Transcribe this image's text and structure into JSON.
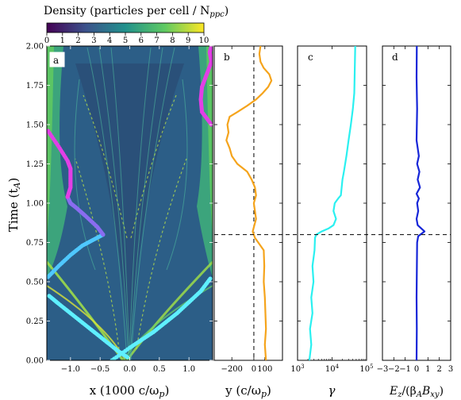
{
  "colorbar": {
    "label": "Density (particles per cell / N",
    "label_sub": "ppc",
    "label_close": ")",
    "ticks": [
      "0",
      "1",
      "2",
      "3",
      "4",
      "5",
      "6",
      "7",
      "8",
      "9",
      "10"
    ],
    "colors": [
      "#440154",
      "#3b528b",
      "#21918c",
      "#5ec962",
      "#fde725"
    ]
  },
  "panels": [
    {
      "letter": "a"
    },
    {
      "letter": "b"
    },
    {
      "letter": "c"
    },
    {
      "letter": "d"
    }
  ],
  "chart_data": [
    {
      "type": "heatmap",
      "panel": "a",
      "title": "",
      "xlabel": "x (1000 c/ω",
      "xlabel_sub": "p",
      "xlabel_close": ")",
      "ylabel": "Time (t",
      "ylabel_sub": "A",
      "ylabel_close": ")",
      "xlim": [
        -1.4,
        1.4
      ],
      "ylim": [
        0,
        2.0
      ],
      "xticks": [
        "−1.0",
        "−0.5",
        "0.0",
        "0.5",
        "1.0"
      ],
      "xtick_values": [
        -1.0,
        -0.5,
        0.0,
        0.5,
        1.0
      ],
      "yticks": [
        "0.00",
        "0.25",
        "0.50",
        "0.75",
        "1.00",
        "1.25",
        "1.50",
        "1.75",
        "2.00"
      ],
      "ytick_values": [
        0,
        0.25,
        0.5,
        0.75,
        1.0,
        1.25,
        1.5,
        1.75,
        2.0
      ],
      "series": [
        {
          "color": "#5ff0ff",
          "points": [
            [
              -0.04,
              0.02
            ],
            [
              -0.2,
              0.06
            ],
            [
              -0.4,
              0.12
            ],
            [
              -0.6,
              0.18
            ],
            [
              -0.8,
              0.24
            ],
            [
              -1.0,
              0.3
            ],
            [
              -1.2,
              0.36
            ],
            [
              -1.36,
              0.41
            ]
          ]
        },
        {
          "color": "#5ff0ff",
          "points": [
            [
              1.36,
              0.52
            ],
            [
              1.2,
              0.44
            ],
            [
              1.0,
              0.37
            ],
            [
              0.8,
              0.3
            ],
            [
              0.6,
              0.24
            ],
            [
              0.4,
              0.18
            ],
            [
              0.2,
              0.13
            ],
            [
              0.0,
              0.08
            ],
            [
              -0.3,
              0.0
            ]
          ]
        },
        {
          "color": "#4fc8ff",
          "points": [
            [
              -1.38,
              0.53
            ],
            [
              -1.2,
              0.6
            ],
            [
              -1.0,
              0.67
            ],
            [
              -0.8,
              0.73
            ],
            [
              -0.6,
              0.77
            ],
            [
              -0.45,
              0.8
            ]
          ]
        },
        {
          "color": "#8a6cf0",
          "points": [
            [
              -0.45,
              0.8
            ],
            [
              -0.55,
              0.85
            ],
            [
              -0.75,
              0.92
            ],
            [
              -0.9,
              0.97
            ],
            [
              -1.0,
              1.0
            ],
            [
              -1.05,
              1.04
            ]
          ]
        },
        {
          "color": "#e23fe6",
          "points": [
            [
              -1.05,
              1.04
            ],
            [
              -1.0,
              1.1
            ],
            [
              -1.0,
              1.16
            ],
            [
              -1.0,
              1.22
            ],
            [
              -1.05,
              1.27
            ],
            [
              -1.2,
              1.36
            ],
            [
              -1.38,
              1.46
            ]
          ]
        },
        {
          "color": "#e23fe6",
          "points": [
            [
              1.38,
              1.5
            ],
            [
              1.22,
              1.58
            ],
            [
              1.2,
              1.66
            ],
            [
              1.22,
              1.74
            ],
            [
              1.3,
              1.82
            ],
            [
              1.38,
              1.9
            ],
            [
              1.35,
              1.96
            ],
            [
              1.38,
              2.0
            ]
          ]
        }
      ]
    },
    {
      "type": "line",
      "panel": "b",
      "xlabel": "y (c/ω",
      "xlabel_sub": "p",
      "xlabel_close": ")",
      "xlim": [
        -360,
        260
      ],
      "ylim": [
        0,
        2.0
      ],
      "xticks": [
        "−200",
        "0",
        "100"
      ],
      "xtick_values": [
        -200,
        0,
        100
      ],
      "color": "#f5a41c",
      "series": [
        {
          "name": "",
          "color": "#f5a41c",
          "points": [
            [
              110,
              0.0
            ],
            [
              100,
              0.1
            ],
            [
              110,
              0.2
            ],
            [
              105,
              0.3
            ],
            [
              100,
              0.4
            ],
            [
              90,
              0.5
            ],
            [
              95,
              0.6
            ],
            [
              90,
              0.7
            ],
            [
              10,
              0.78
            ],
            [
              -10,
              0.82
            ],
            [
              20,
              0.9
            ],
            [
              0,
              1.0
            ],
            [
              20,
              1.05
            ],
            [
              10,
              1.1
            ],
            [
              -20,
              1.15
            ],
            [
              -60,
              1.2
            ],
            [
              -150,
              1.25
            ],
            [
              -200,
              1.3
            ],
            [
              -220,
              1.35
            ],
            [
              -250,
              1.4
            ],
            [
              -230,
              1.45
            ],
            [
              -240,
              1.5
            ],
            [
              -220,
              1.55
            ],
            [
              -150,
              1.58
            ],
            [
              -60,
              1.62
            ],
            [
              20,
              1.66
            ],
            [
              80,
              1.7
            ],
            [
              130,
              1.74
            ],
            [
              160,
              1.78
            ],
            [
              140,
              1.82
            ],
            [
              90,
              1.86
            ],
            [
              60,
              1.9
            ],
            [
              50,
              1.95
            ],
            [
              60,
              2.0
            ]
          ]
        }
      ],
      "hline": 0.8,
      "vline": 0
    },
    {
      "type": "line",
      "panel": "c",
      "xlabel": "γ",
      "xscale": "log",
      "xlim": [
        1000,
        100000
      ],
      "ylim": [
        0,
        2.0
      ],
      "xticks": [
        "10",
        "10",
        "10"
      ],
      "xtick_exps": [
        "3",
        "4",
        "5"
      ],
      "xtick_values": [
        1000,
        10000,
        100000
      ],
      "series": [
        {
          "name": "",
          "color": "#2af0f0",
          "points": [
            [
              2200,
              0.0
            ],
            [
              2500,
              0.1
            ],
            [
              2300,
              0.2
            ],
            [
              2700,
              0.3
            ],
            [
              2500,
              0.4
            ],
            [
              2900,
              0.5
            ],
            [
              2700,
              0.6
            ],
            [
              3100,
              0.7
            ],
            [
              3200,
              0.78
            ],
            [
              3500,
              0.8
            ],
            [
              5000,
              0.82
            ],
            [
              8000,
              0.84
            ],
            [
              11000,
              0.86
            ],
            [
              13000,
              0.9
            ],
            [
              11000,
              0.95
            ],
            [
              12000,
              1.0
            ],
            [
              15000,
              1.03
            ],
            [
              18000,
              1.05
            ],
            [
              19000,
              1.1
            ],
            [
              20000,
              1.15
            ],
            [
              22000,
              1.2
            ],
            [
              26000,
              1.3
            ],
            [
              30000,
              1.4
            ],
            [
              35000,
              1.5
            ],
            [
              40000,
              1.6
            ],
            [
              44000,
              1.7
            ],
            [
              45000,
              1.8
            ],
            [
              46000,
              1.9
            ],
            [
              47000,
              2.0
            ]
          ]
        }
      ],
      "hline": 0.8
    },
    {
      "type": "line",
      "panel": "d",
      "xlabel": "E",
      "xlabel_sub": "z",
      "xlabel_rest": "/(β",
      "xlabel_sub2": "A",
      "xlabel_rest2": "B",
      "xlabel_sub3": "xy",
      "xlabel_close": ")",
      "xlim": [
        -3,
        3
      ],
      "ylim": [
        0,
        2.0
      ],
      "xticks": [
        "−3",
        "−2",
        "−1",
        "0",
        "1",
        "2",
        "3"
      ],
      "xtick_values": [
        -3,
        -2,
        -1,
        0,
        1,
        2,
        3
      ],
      "series": [
        {
          "name": "",
          "color": "#1626d8",
          "points": [
            [
              0.0,
              0.0
            ],
            [
              0.02,
              0.2
            ],
            [
              0.0,
              0.4
            ],
            [
              0.03,
              0.6
            ],
            [
              0.05,
              0.75
            ],
            [
              0.15,
              0.79
            ],
            [
              0.7,
              0.82
            ],
            [
              0.1,
              0.86
            ],
            [
              0.0,
              0.9
            ],
            [
              0.15,
              0.95
            ],
            [
              0.05,
              1.0
            ],
            [
              0.2,
              1.03
            ],
            [
              0.0,
              1.06
            ],
            [
              0.3,
              1.1
            ],
            [
              0.1,
              1.15
            ],
            [
              0.25,
              1.2
            ],
            [
              0.05,
              1.25
            ],
            [
              0.2,
              1.3
            ],
            [
              0.0,
              1.4
            ],
            [
              0.05,
              1.6
            ],
            [
              0.0,
              1.8
            ],
            [
              0.02,
              2.0
            ]
          ]
        }
      ],
      "hline": 0.8
    }
  ]
}
